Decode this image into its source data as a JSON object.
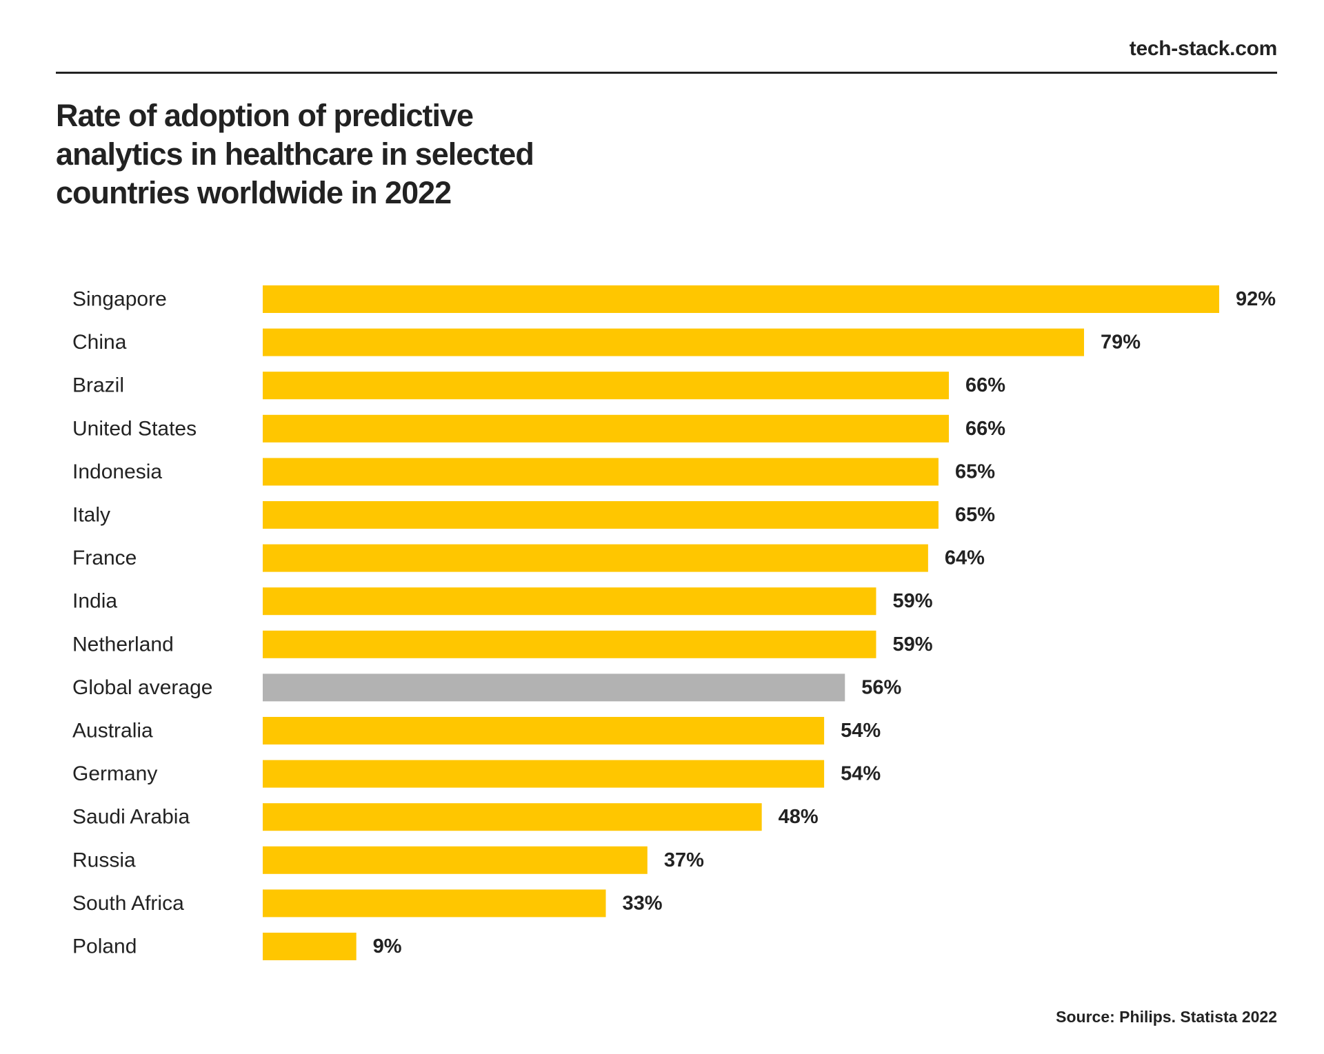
{
  "brand": "tech-stack.com",
  "title": "Rate of adoption of predictive analytics in healthcare in selected countries worldwide in 2022",
  "source": "Source: Philips. Statista 2022",
  "colors": {
    "bar": "#FFC600",
    "highlight_bar": "#B2B2B2",
    "text": "#222222",
    "rule": "#222222"
  },
  "chart_data": {
    "type": "bar",
    "orientation": "horizontal",
    "title": "Rate of adoption of predictive analytics in healthcare in selected countries worldwide in 2022",
    "xlabel": "",
    "ylabel": "",
    "xlim": [
      0,
      92
    ],
    "grid": false,
    "categories": [
      "Singapore",
      "China",
      "Brazil",
      "United States",
      "Indonesia",
      "Italy",
      "France",
      "India",
      "Netherland",
      "Global average",
      "Australia",
      "Germany",
      "Saudi Arabia",
      "Russia",
      "South Africa",
      "Poland"
    ],
    "values": [
      92,
      79,
      66,
      66,
      65,
      65,
      64,
      59,
      59,
      56,
      54,
      54,
      48,
      37,
      33,
      9
    ],
    "value_labels": [
      "92%",
      "79%",
      "66%",
      "66%",
      "65%",
      "65%",
      "64%",
      "59%",
      "59%",
      "56%",
      "54%",
      "54%",
      "48%",
      "37%",
      "33%",
      "9%"
    ],
    "highlight_category": "Global average"
  }
}
